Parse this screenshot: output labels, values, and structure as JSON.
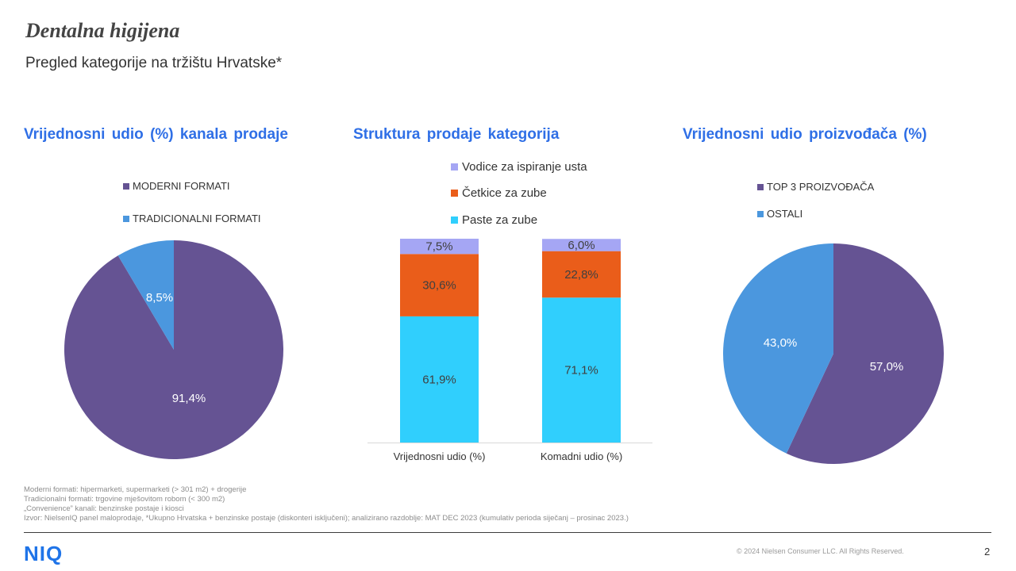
{
  "header": {
    "title": "Dentalna higijena",
    "subtitle": "Pregled kategorije na tržištu Hrvatske*"
  },
  "sections": {
    "left_title": "Vrijednosni  udio (%) kanala prodaje",
    "middle_title": "Struktura prodaje kategorija",
    "right_title": "Vrijednosni  udio proizvođača (%)"
  },
  "colors": {
    "purple": "#655393",
    "blue": "#4b97de",
    "cyan": "#30cffd",
    "orange": "#ea5d1a",
    "lavender": "#a5a6f4",
    "section_title": "#2f6fe6"
  },
  "chart_data": [
    {
      "type": "pie",
      "slices": [
        {
          "name": "MODERNI FORMATI",
          "value": 91.4,
          "label": "91,4%",
          "color": "#655393"
        },
        {
          "name": "TRADICIONALNI FORMATI",
          "value": 8.5,
          "label": "8,5%",
          "color": "#4b97de"
        }
      ]
    },
    {
      "type": "bar",
      "stacked": true,
      "categories": [
        "Vrijednosni udio (%)",
        "Komadni udio (%)"
      ],
      "series": [
        {
          "name": "Paste za zube",
          "values": [
            61.9,
            71.1
          ],
          "labels": [
            "61,9%",
            "71,1%"
          ],
          "color": "#30cffd"
        },
        {
          "name": "Četkice za zube",
          "values": [
            30.6,
            22.8
          ],
          "labels": [
            "30,6%",
            "22,8%"
          ],
          "color": "#ea5d1a"
        },
        {
          "name": "Vodice za ispiranje usta",
          "values": [
            7.5,
            6.0
          ],
          "labels": [
            "7,5%",
            "6,0%"
          ],
          "color": "#a5a6f4"
        }
      ],
      "legend_order": [
        "Vodice za ispiranje usta",
        "Četkice za zube",
        "Paste za zube"
      ],
      "ylim": [
        0,
        100
      ]
    },
    {
      "type": "pie",
      "slices": [
        {
          "name": "TOP 3 PROIZVOĐAČA",
          "value": 57.0,
          "label": "57,0%",
          "color": "#655393"
        },
        {
          "name": "OSTALI",
          "value": 43.0,
          "label": "43,0%",
          "color": "#4b97de"
        }
      ]
    }
  ],
  "footnotes": [
    "Moderni formati: hipermarketi, supermarketi (> 301 m2) + drogerije",
    "Tradicionalni formati: trgovine mješovitom robom (< 300 m2)",
    "„Convenience” kanali: benzinske postaje i kiosci",
    "Izvor: NielsenIQ panel maloprodaje, *Ukupno Hrvatska + benzinske postaje (diskonteri isključeni); analizirano razdoblje: MAT DEC 2023 (kumulativ perioda siječanj – prosinac 2023.)"
  ],
  "footer": {
    "logo": "NIQ",
    "copyright": "© 2024 Nielsen Consumer LLC. All Rights Reserved.",
    "page_number": "2"
  }
}
